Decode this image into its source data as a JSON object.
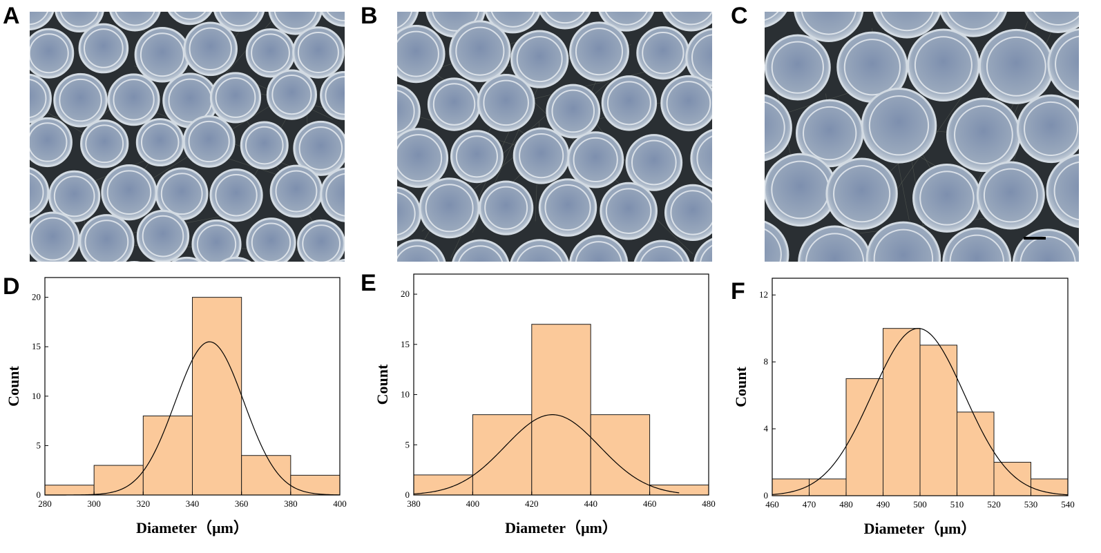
{
  "panels": {
    "A": "A",
    "B": "B",
    "C": "C",
    "D": "D",
    "E": "E",
    "F": "F"
  },
  "colors": {
    "bar_fill": "#fbc99a",
    "bar_stroke": "#1a1a1a",
    "photo_bg": "#2a2f33",
    "bead_fill": "#9aa9bd",
    "bead_ring": "#e6ebf0"
  },
  "chart_data": [
    {
      "type": "bar",
      "panel": "D",
      "xlabel": "Diameter（μm）",
      "ylabel": "Count",
      "bin_edges": [
        280,
        300,
        320,
        340,
        360,
        380,
        400
      ],
      "values": [
        1,
        3,
        8,
        20,
        4,
        2
      ],
      "xlim": [
        280,
        400
      ],
      "ylim": [
        0,
        22
      ],
      "xticks": [
        280,
        300,
        320,
        340,
        360,
        380,
        400
      ],
      "yticks": [
        0,
        5,
        10,
        15,
        20
      ],
      "fit": {
        "type": "gaussian",
        "mean": 347,
        "sd": 14,
        "peak": 15.5
      }
    },
    {
      "type": "bar",
      "panel": "E",
      "xlabel": "Diameter（μm）",
      "ylabel": "Count",
      "bin_edges": [
        380,
        400,
        420,
        440,
        460,
        480
      ],
      "values": [
        2,
        8,
        17,
        8,
        1
      ],
      "xlim": [
        380,
        480
      ],
      "ylim": [
        0,
        22
      ],
      "xticks": [
        380,
        400,
        420,
        440,
        460,
        480
      ],
      "yticks": [
        0,
        5,
        10,
        15,
        20
      ],
      "fit": {
        "type": "gaussian",
        "mean": 427,
        "sd": 16,
        "peak": 8,
        "x_end": 470
      }
    },
    {
      "type": "bar",
      "panel": "F",
      "xlabel": "Diameter（μm）",
      "ylabel": "Count",
      "bin_edges": [
        460,
        470,
        480,
        490,
        500,
        510,
        520,
        530,
        540
      ],
      "values": [
        1,
        1,
        7,
        10,
        9,
        5,
        2,
        1
      ],
      "xlim": [
        460,
        540
      ],
      "ylim": [
        0,
        13
      ],
      "xticks": [
        460,
        470,
        480,
        490,
        500,
        510,
        520,
        530,
        540
      ],
      "yticks": [
        0,
        4,
        8,
        12
      ],
      "fit": {
        "type": "gaussian",
        "mean": 499.5,
        "sd": 12.5,
        "peak": 10
      }
    }
  ]
}
